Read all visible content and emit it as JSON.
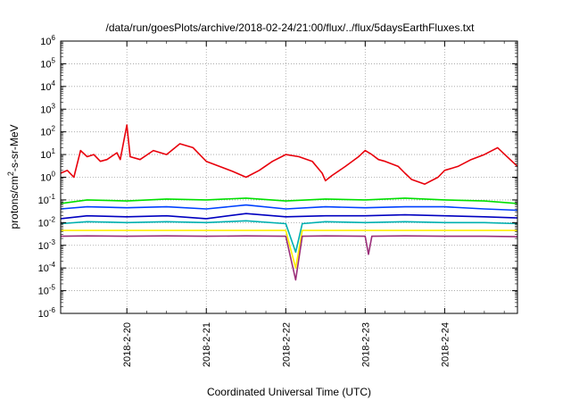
{
  "chart_data": {
    "type": "line",
    "title": "/data/run/goesPlots/archive/2018-02-24/21:00/flux/../flux/5daysEarthFluxes.txt",
    "xlabel": "Coordinated Universal Time (UTC)",
    "ylabel_base": "protons/cm",
    "ylabel_sup": "2",
    "ylabel_rest": "-s-sr-MeV",
    "yscale": "log",
    "ylim": [
      1e-06,
      1000000.0
    ],
    "xlim": [
      "2018-02-19 04:00",
      "2018-02-24 22:00"
    ],
    "x_ticks": [
      "2018-2-20",
      "2018-2-21",
      "2018-2-22",
      "2018-2-23",
      "2018-2-24"
    ],
    "y_ticks": [
      {
        "base": "10",
        "exp": "6"
      },
      {
        "base": "10",
        "exp": "5"
      },
      {
        "base": "10",
        "exp": "4"
      },
      {
        "base": "10",
        "exp": "3"
      },
      {
        "base": "10",
        "exp": "2"
      },
      {
        "base": "10",
        "exp": "1"
      },
      {
        "base": "10",
        "exp": "0"
      },
      {
        "base": "10",
        "exp": "-1"
      },
      {
        "base": "10",
        "exp": "-2"
      },
      {
        "base": "10",
        "exp": "-3"
      },
      {
        "base": "10",
        "exp": "-4"
      },
      {
        "base": "10",
        "exp": "-5"
      },
      {
        "base": "10",
        "exp": "-6"
      }
    ],
    "grid": true,
    "series": [
      {
        "color": "#e8000b",
        "points": [
          [
            "2018-02-19 04:00",
            1.5
          ],
          [
            "2018-02-19 06:00",
            2.0
          ],
          [
            "2018-02-19 08:00",
            1.0
          ],
          [
            "2018-02-19 10:00",
            15
          ],
          [
            "2018-02-19 12:00",
            8
          ],
          [
            "2018-02-19 14:00",
            10
          ],
          [
            "2018-02-19 16:00",
            5
          ],
          [
            "2018-02-19 18:00",
            6
          ],
          [
            "2018-02-19 21:00",
            12
          ],
          [
            "2018-02-19 22:00",
            6
          ],
          [
            "2018-02-20 00:00",
            200
          ],
          [
            "2018-02-20 01:00",
            8
          ],
          [
            "2018-02-20 04:00",
            6
          ],
          [
            "2018-02-20 08:00",
            15
          ],
          [
            "2018-02-20 12:00",
            10
          ],
          [
            "2018-02-20 16:00",
            30
          ],
          [
            "2018-02-20 20:00",
            20
          ],
          [
            "2018-02-21 00:00",
            5
          ],
          [
            "2018-02-21 04:00",
            3
          ],
          [
            "2018-02-21 08:00",
            1.8
          ],
          [
            "2018-02-21 12:00",
            1.0
          ],
          [
            "2018-02-21 16:00",
            2
          ],
          [
            "2018-02-21 20:00",
            5
          ],
          [
            "2018-02-22 00:00",
            10
          ],
          [
            "2018-02-22 04:00",
            8
          ],
          [
            "2018-02-22 08:00",
            5
          ],
          [
            "2018-02-22 11:00",
            1.5
          ],
          [
            "2018-02-22 12:00",
            0.7
          ],
          [
            "2018-02-22 14:00",
            1.2
          ],
          [
            "2018-02-22 18:00",
            3
          ],
          [
            "2018-02-22 22:00",
            8
          ],
          [
            "2018-02-23 00:00",
            15
          ],
          [
            "2018-02-23 02:00",
            10
          ],
          [
            "2018-02-23 04:00",
            6
          ],
          [
            "2018-02-23 06:00",
            5
          ],
          [
            "2018-02-23 10:00",
            3
          ],
          [
            "2018-02-23 12:00",
            1.5
          ],
          [
            "2018-02-23 14:00",
            0.8
          ],
          [
            "2018-02-23 18:00",
            0.5
          ],
          [
            "2018-02-23 22:00",
            1.0
          ],
          [
            "2018-02-24 00:00",
            2
          ],
          [
            "2018-02-24 04:00",
            3
          ],
          [
            "2018-02-24 08:00",
            6
          ],
          [
            "2018-02-24 12:00",
            10
          ],
          [
            "2018-02-24 16:00",
            20
          ],
          [
            "2018-02-24 22:00",
            3
          ]
        ]
      },
      {
        "color": "#00e000",
        "points": [
          [
            "2018-02-19 04:00",
            0.07
          ],
          [
            "2018-02-19 12:00",
            0.1
          ],
          [
            "2018-02-20 00:00",
            0.09
          ],
          [
            "2018-02-20 12:00",
            0.11
          ],
          [
            "2018-02-21 00:00",
            0.1
          ],
          [
            "2018-02-21 12:00",
            0.12
          ],
          [
            "2018-02-22 00:00",
            0.09
          ],
          [
            "2018-02-22 12:00",
            0.11
          ],
          [
            "2018-02-23 00:00",
            0.1
          ],
          [
            "2018-02-23 12:00",
            0.12
          ],
          [
            "2018-02-24 00:00",
            0.1
          ],
          [
            "2018-02-24 12:00",
            0.09
          ],
          [
            "2018-02-24 22:00",
            0.07
          ]
        ]
      },
      {
        "color": "#0040ff",
        "points": [
          [
            "2018-02-19 04:00",
            0.04
          ],
          [
            "2018-02-19 12:00",
            0.05
          ],
          [
            "2018-02-20 00:00",
            0.045
          ],
          [
            "2018-02-20 12:00",
            0.05
          ],
          [
            "2018-02-21 00:00",
            0.04
          ],
          [
            "2018-02-21 12:00",
            0.06
          ],
          [
            "2018-02-22 00:00",
            0.04
          ],
          [
            "2018-02-22 12:00",
            0.05
          ],
          [
            "2018-02-23 00:00",
            0.045
          ],
          [
            "2018-02-23 12:00",
            0.05
          ],
          [
            "2018-02-24 00:00",
            0.05
          ],
          [
            "2018-02-24 12:00",
            0.04
          ],
          [
            "2018-02-24 22:00",
            0.035
          ]
        ]
      },
      {
        "color": "#0000c0",
        "points": [
          [
            "2018-02-19 04:00",
            0.015
          ],
          [
            "2018-02-19 12:00",
            0.02
          ],
          [
            "2018-02-20 00:00",
            0.018
          ],
          [
            "2018-02-20 12:00",
            0.02
          ],
          [
            "2018-02-21 00:00",
            0.015
          ],
          [
            "2018-02-21 12:00",
            0.025
          ],
          [
            "2018-02-22 00:00",
            0.018
          ],
          [
            "2018-02-22 12:00",
            0.02
          ],
          [
            "2018-02-23 00:00",
            0.02
          ],
          [
            "2018-02-23 12:00",
            0.022
          ],
          [
            "2018-02-24 00:00",
            0.02
          ],
          [
            "2018-02-24 12:00",
            0.018
          ],
          [
            "2018-02-24 22:00",
            0.016
          ]
        ]
      },
      {
        "color": "#00b0b0",
        "points": [
          [
            "2018-02-19 04:00",
            0.009
          ],
          [
            "2018-02-19 12:00",
            0.011
          ],
          [
            "2018-02-20 00:00",
            0.01
          ],
          [
            "2018-02-20 12:00",
            0.011
          ],
          [
            "2018-02-21 00:00",
            0.01
          ],
          [
            "2018-02-21 12:00",
            0.012
          ],
          [
            "2018-02-22 00:00",
            0.009
          ],
          [
            "2018-02-22 03:00",
            0.0005
          ],
          [
            "2018-02-22 05:00",
            0.009
          ],
          [
            "2018-02-22 12:00",
            0.011
          ],
          [
            "2018-02-23 00:00",
            0.01
          ],
          [
            "2018-02-23 12:00",
            0.011
          ],
          [
            "2018-02-24 00:00",
            0.01
          ],
          [
            "2018-02-24 12:00",
            0.01
          ],
          [
            "2018-02-24 22:00",
            0.009
          ]
        ]
      },
      {
        "color": "#ffee00",
        "points": [
          [
            "2018-02-19 04:00",
            0.0045
          ],
          [
            "2018-02-20 00:00",
            0.0045
          ],
          [
            "2018-02-21 00:00",
            0.0045
          ],
          [
            "2018-02-22 00:00",
            0.0045
          ],
          [
            "2018-02-22 03:00",
            0.0001
          ],
          [
            "2018-02-22 05:00",
            0.0045
          ],
          [
            "2018-02-23 00:00",
            0.0045
          ],
          [
            "2018-02-24 00:00",
            0.0045
          ],
          [
            "2018-02-24 22:00",
            0.0045
          ]
        ]
      },
      {
        "color": "#9a2e79",
        "points": [
          [
            "2018-02-19 04:00",
            0.0025
          ],
          [
            "2018-02-19 12:00",
            0.0026
          ],
          [
            "2018-02-20 00:00",
            0.0025
          ],
          [
            "2018-02-20 12:00",
            0.0026
          ],
          [
            "2018-02-21 00:00",
            0.0025
          ],
          [
            "2018-02-21 12:00",
            0.0026
          ],
          [
            "2018-02-22 00:00",
            0.0025
          ],
          [
            "2018-02-22 03:00",
            3e-05
          ],
          [
            "2018-02-22 05:00",
            0.0025
          ],
          [
            "2018-02-22 12:00",
            0.0026
          ],
          [
            "2018-02-23 00:00",
            0.0025
          ],
          [
            "2018-02-23 01:00",
            0.0004
          ],
          [
            "2018-02-23 02:00",
            0.0025
          ],
          [
            "2018-02-23 12:00",
            0.0026
          ],
          [
            "2018-02-24 00:00",
            0.0025
          ],
          [
            "2018-02-24 12:00",
            0.0025
          ],
          [
            "2018-02-24 22:00",
            0.0024
          ]
        ]
      }
    ]
  }
}
